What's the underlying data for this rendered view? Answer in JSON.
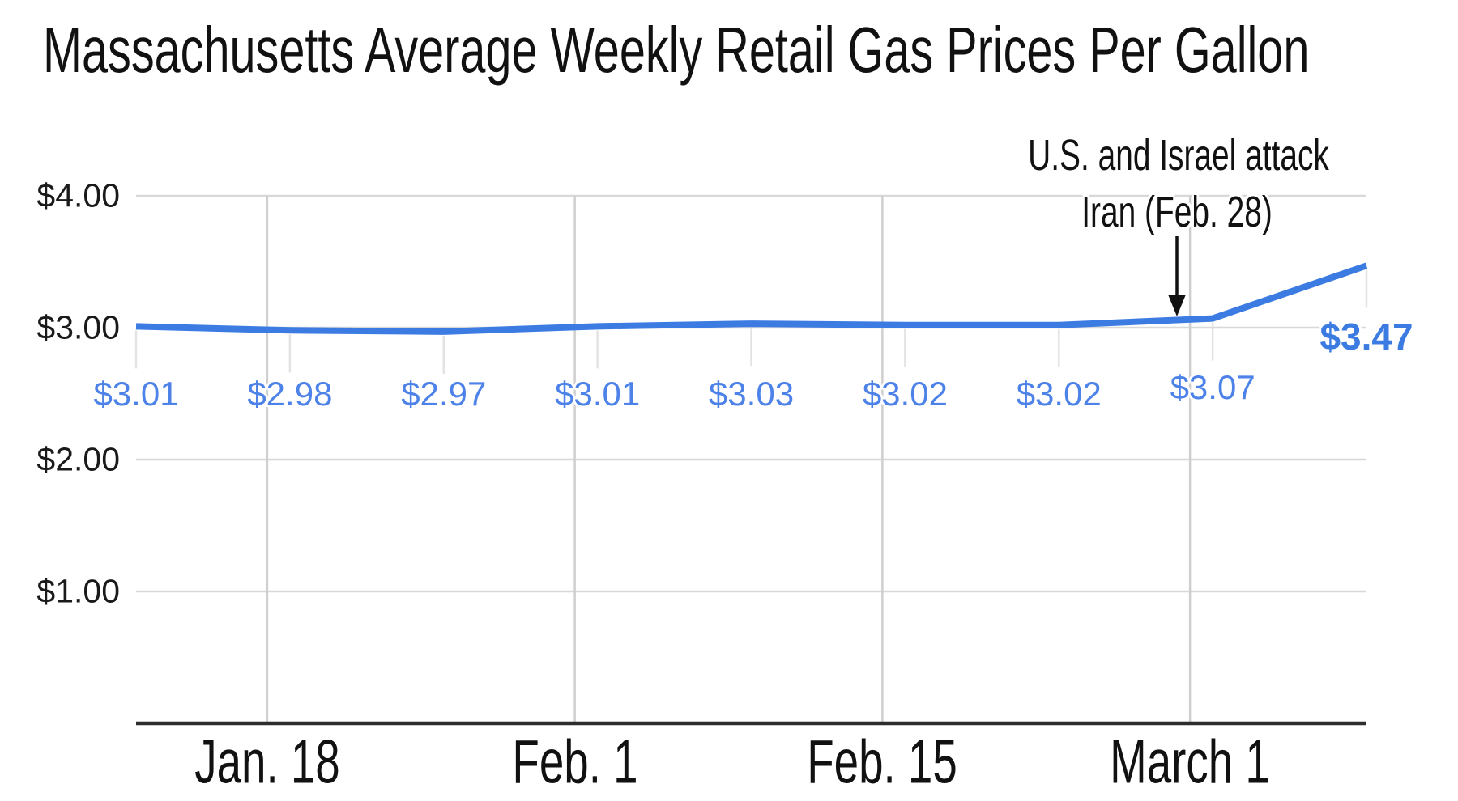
{
  "title": "Massachusetts Average Weekly Retail Gas Prices Per Gallon",
  "annotation": {
    "line1": "U.S. and Israel attack",
    "line2": "Iran (Feb. 28)"
  },
  "chart_data": {
    "type": "line",
    "title": "Massachusetts Average Weekly Retail Gas Prices Per Gallon",
    "values": [
      3.01,
      2.98,
      2.97,
      3.01,
      3.03,
      3.02,
      3.02,
      3.07,
      3.47
    ],
    "point_labels": [
      "$3.01",
      "$2.98",
      "$2.97",
      "$3.01",
      "$3.03",
      "$3.02",
      "$3.02",
      "$3.07"
    ],
    "end_label": "$3.47",
    "x_axis": {
      "tick_labels": [
        "Jan. 18",
        "Feb. 1",
        "Feb. 15",
        "March 1"
      ],
      "points_per_tick_note": "weekly data points; labeled gridlines fall every two weeks, slightly left of the even data points"
    },
    "y_axis": {
      "tick_labels": [
        "$4.00",
        "$3.00",
        "$2.00",
        "$1.00"
      ],
      "tick_values": [
        4.0,
        3.0,
        2.0,
        1.0
      ],
      "ylim": [
        0,
        4.0
      ]
    },
    "annotation": {
      "text_line1": "U.S. and Israel attack",
      "text_line2": "Iran (Feb. 28)",
      "arrow": "vertical arrow pointing down at the line just before the March 1 gridline"
    },
    "legend": "none",
    "grid": "light gray horizontal dollar gridlines and vertical biweekly gridlines; short light ticks hang below each weekly data point",
    "colors": {
      "line": "#3c7ce2",
      "value_labels": "#4d82e8",
      "end_label": "#3c7ce2",
      "h_gridline": "#d8d8d8",
      "v_gridline": "#cfcfcf",
      "point_tick": "#e3e3e3",
      "axis_baseline": "#2d2d2d",
      "text": "#111111"
    }
  }
}
